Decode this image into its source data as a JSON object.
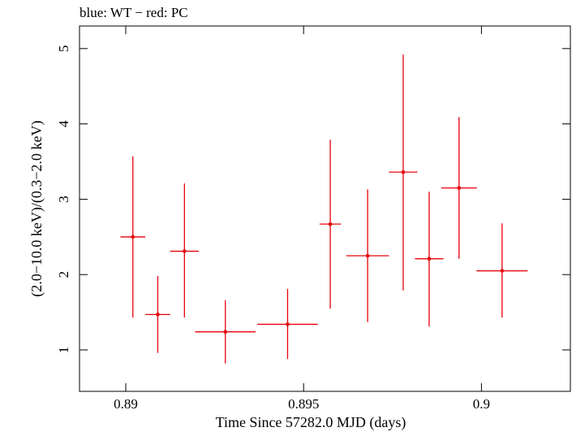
{
  "chart_data": {
    "type": "scatter",
    "title": "blue: WT − red: PC",
    "xlabel": "Time Since 57282.0 MJD (days)",
    "ylabel": "(2.0−10.0 keV)/(0.3−2.0 keV)",
    "xlim": [
      0.8887,
      0.9025
    ],
    "ylim": [
      0.45,
      5.3
    ],
    "xticks": [
      0.89,
      0.895,
      0.9
    ],
    "xtick_labels": [
      "0.89",
      "0.895",
      "0.9"
    ],
    "yticks": [
      1,
      2,
      3,
      4,
      5
    ],
    "ytick_labels": [
      "1",
      "2",
      "3",
      "4",
      "5"
    ],
    "series": [
      {
        "name": "PC",
        "color": "#e8000b",
        "points": [
          {
            "x": 0.8902,
            "xerr": 0.00035,
            "y": 2.5,
            "ylo": 1.43,
            "yhi": 3.57
          },
          {
            "x": 0.8909,
            "xerr": 0.00035,
            "y": 1.47,
            "ylo": 0.96,
            "yhi": 1.98
          },
          {
            "x": 0.89165,
            "xerr": 0.0004,
            "y": 2.31,
            "ylo": 1.43,
            "yhi": 3.21
          },
          {
            "x": 0.8928,
            "xerr": 0.00085,
            "y": 1.24,
            "ylo": 0.82,
            "yhi": 1.66
          },
          {
            "x": 0.89455,
            "xerr": 0.00085,
            "y": 1.34,
            "ylo": 0.88,
            "yhi": 1.81
          },
          {
            "x": 0.89575,
            "xerr": 0.0003,
            "y": 2.67,
            "ylo": 1.55,
            "yhi": 3.79
          },
          {
            "x": 0.8968,
            "xerr": 0.0006,
            "y": 2.25,
            "ylo": 1.37,
            "yhi": 3.13
          },
          {
            "x": 0.8978,
            "xerr": 0.0004,
            "y": 3.36,
            "ylo": 1.79,
            "yhi": 4.92
          },
          {
            "x": 0.89853,
            "xerr": 0.0004,
            "y": 2.21,
            "ylo": 1.31,
            "yhi": 3.1
          },
          {
            "x": 0.89937,
            "xerr": 0.0005,
            "y": 3.15,
            "ylo": 2.21,
            "yhi": 4.09
          },
          {
            "x": 0.90058,
            "xerr": 0.00072,
            "y": 2.05,
            "ylo": 1.43,
            "yhi": 2.68
          }
        ]
      }
    ]
  }
}
